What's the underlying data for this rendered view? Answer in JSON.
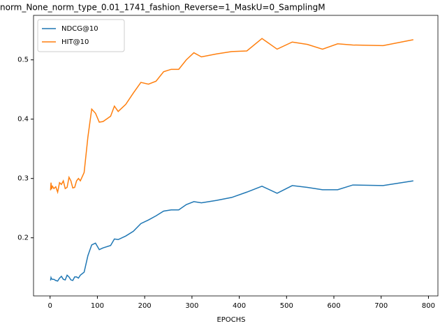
{
  "chart_data": {
    "type": "line",
    "title": "norm_None_norm_type_0.01_1741_fashion_Reverse=1_MaskU=0_SamplingM",
    "xlabel": "EPOCHS",
    "x": [
      1,
      2,
      3,
      5,
      8,
      12,
      16,
      20,
      24,
      28,
      32,
      36,
      40,
      44,
      48,
      52,
      56,
      60,
      64,
      72,
      80,
      88,
      96,
      104,
      112,
      128,
      136,
      144,
      160,
      176,
      192,
      208,
      224,
      240,
      256,
      272,
      288,
      304,
      320,
      352,
      384,
      416,
      448,
      480,
      512,
      544,
      576,
      608,
      640,
      704,
      768
    ],
    "series": [
      {
        "name": "NDCG@10",
        "color": "#1f77b4",
        "values": [
          0.128,
          0.133,
          0.131,
          0.13,
          0.13,
          0.128,
          0.127,
          0.132,
          0.135,
          0.13,
          0.129,
          0.137,
          0.134,
          0.129,
          0.128,
          0.134,
          0.134,
          0.132,
          0.137,
          0.142,
          0.17,
          0.188,
          0.191,
          0.18,
          0.183,
          0.187,
          0.198,
          0.197,
          0.203,
          0.211,
          0.224,
          0.23,
          0.237,
          0.245,
          0.247,
          0.247,
          0.256,
          0.261,
          0.259,
          0.263,
          0.268,
          0.277,
          0.287,
          0.275,
          0.288,
          0.285,
          0.281,
          0.281,
          0.289,
          0.288,
          0.296
        ]
      },
      {
        "name": "HIT@10",
        "color": "#ff7f0e",
        "values": [
          0.28,
          0.293,
          0.282,
          0.287,
          0.283,
          0.286,
          0.277,
          0.293,
          0.29,
          0.296,
          0.283,
          0.285,
          0.302,
          0.296,
          0.284,
          0.285,
          0.296,
          0.3,
          0.296,
          0.31,
          0.37,
          0.417,
          0.41,
          0.395,
          0.396,
          0.405,
          0.422,
          0.413,
          0.425,
          0.444,
          0.462,
          0.459,
          0.464,
          0.48,
          0.484,
          0.484,
          0.5,
          0.512,
          0.505,
          0.51,
          0.514,
          0.515,
          0.536,
          0.518,
          0.53,
          0.526,
          0.518,
          0.527,
          0.525,
          0.524,
          0.534
        ]
      }
    ],
    "xlim": [
      -35,
      820
    ],
    "ylim": [
      0.102,
      0.575
    ],
    "xticks": [
      0,
      100,
      200,
      300,
      400,
      500,
      600,
      700,
      800
    ],
    "yticks": [
      0.2,
      0.3,
      0.4,
      0.5
    ],
    "legend": "upper left"
  }
}
